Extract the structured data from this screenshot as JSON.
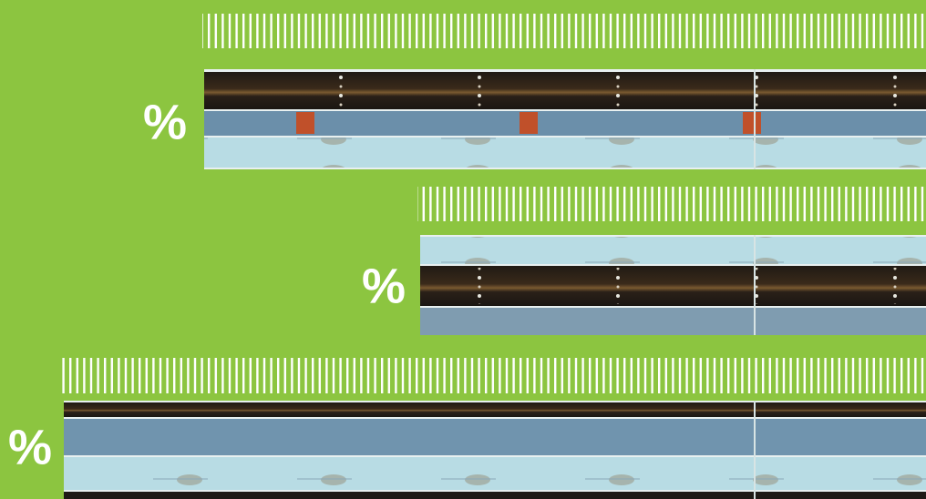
{
  "rows": [
    {
      "label": "%"
    },
    {
      "label": "%"
    },
    {
      "label": "%"
    }
  ]
}
